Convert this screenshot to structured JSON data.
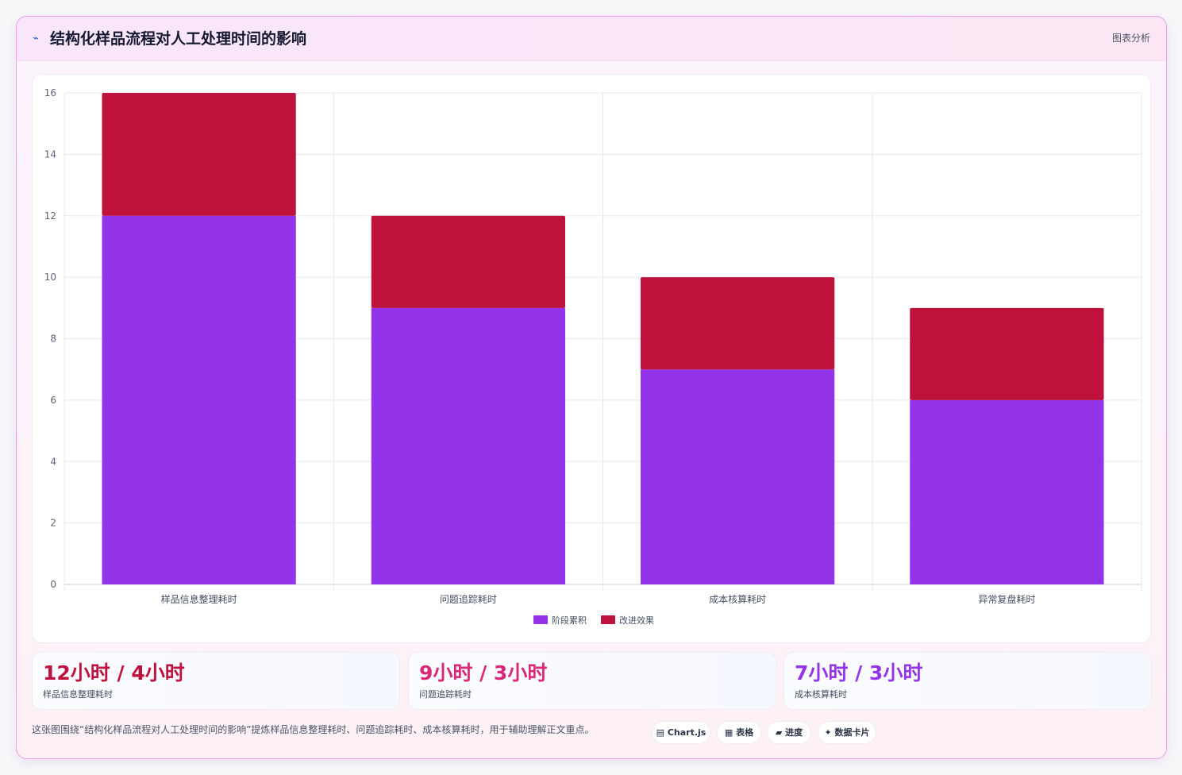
{
  "header": {
    "icon": "⌁",
    "icon_name": "chart-icon",
    "title": "结构化样品流程对人工处理时间的影响",
    "right_label": "图表分析"
  },
  "chart_data": {
    "type": "bar",
    "stacked": true,
    "categories": [
      "样品信息整理耗时",
      "问题追踪耗时",
      "成本核算耗时",
      "异常复盘耗时"
    ],
    "series": [
      {
        "name": "阶段累积",
        "values": [
          12,
          9,
          7,
          6
        ],
        "color": "#9333ea"
      },
      {
        "name": "改进效果",
        "values": [
          4,
          3,
          3,
          3
        ],
        "color": "#be123c"
      }
    ],
    "ylim": [
      0,
      16
    ],
    "yticks": [
      0,
      2,
      4,
      6,
      8,
      10,
      12,
      14,
      16
    ],
    "grid": true,
    "legend_position": "bottom"
  },
  "stats": [
    {
      "value": "12小时 / 4小时",
      "label": "样品信息整理耗时",
      "color": "#be123c"
    },
    {
      "value": "9小时 / 3小时",
      "label": "问题追踪耗时",
      "color": "#db2777"
    },
    {
      "value": "7小时 / 3小时",
      "label": "成本核算耗时",
      "color": "#9333ea"
    }
  ],
  "footer": {
    "note": "这张图围绕“结构化样品流程对人工处理时间的影响”提炼样品信息整理耗时、问题追踪耗时、成本核算耗时，用于辅助理解正文重点。",
    "tags": [
      "▤ Chart.js",
      "▦ 表格",
      "▰ 进度",
      "✦ 数据卡片"
    ]
  }
}
